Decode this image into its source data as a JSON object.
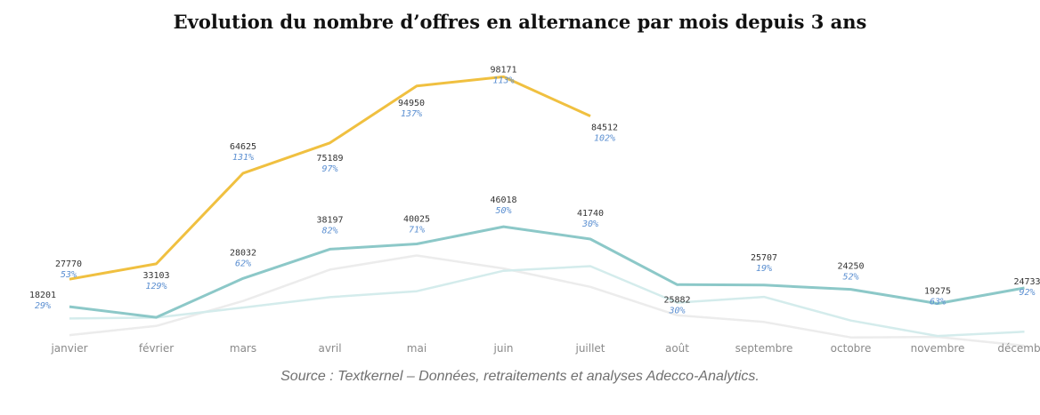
{
  "title": "Evolution du nombre d’offres en alternance par mois depuis 3 ans",
  "source": "Source : Textkernel – Données, retraitements et analyses Adecco-Analytics.",
  "chart_data": {
    "type": "line",
    "categories": [
      "janvier",
      "février",
      "mars",
      "avril",
      "mai",
      "juin",
      "juillet",
      "août",
      "septembre",
      "octobre",
      "novembre",
      "décembre"
    ],
    "ylim": [
      0,
      100000
    ],
    "grid": false,
    "legend": "none",
    "series": [
      {
        "color": "#f0c040",
        "values": [
          27770,
          33103,
          64625,
          75189,
          94950,
          98171,
          84512,
          null,
          null,
          null,
          null,
          null
        ],
        "labels": [
          "27770",
          "33103",
          "64625",
          "75189",
          "94950",
          "98171",
          "84512",
          null,
          null,
          null,
          null,
          null
        ],
        "growth": [
          "53%",
          "129%",
          "131%",
          "97%",
          "137%",
          "113%",
          "102%",
          null,
          null,
          null,
          null,
          null
        ]
      },
      {
        "color": "#8cc8c8",
        "values": [
          18201,
          14500,
          28032,
          38197,
          40025,
          46018,
          41740,
          25882,
          25707,
          24250,
          19275,
          24733
        ],
        "labels": [
          "18201",
          null,
          "28032",
          "38197",
          "40025",
          "46018",
          "41740",
          "25882",
          "25707",
          "24250",
          "19275",
          "24733"
        ],
        "growth": [
          "29%",
          null,
          "62%",
          "82%",
          "71%",
          "50%",
          "30%",
          "30%",
          "19%",
          "52%",
          "63%",
          "92%"
        ]
      },
      {
        "color": "#d4ecec",
        "values": [
          14100,
          14400,
          17900,
          21500,
          23600,
          30700,
          32300,
          19600,
          21600,
          13400,
          8000,
          9500
        ],
        "labels": [],
        "growth": []
      },
      {
        "color": "#ececec",
        "values": [
          8300,
          11500,
          20200,
          31100,
          36000,
          31500,
          25100,
          15200,
          12900,
          7500,
          7700,
          4600
        ],
        "labels": [],
        "growth": []
      }
    ]
  }
}
